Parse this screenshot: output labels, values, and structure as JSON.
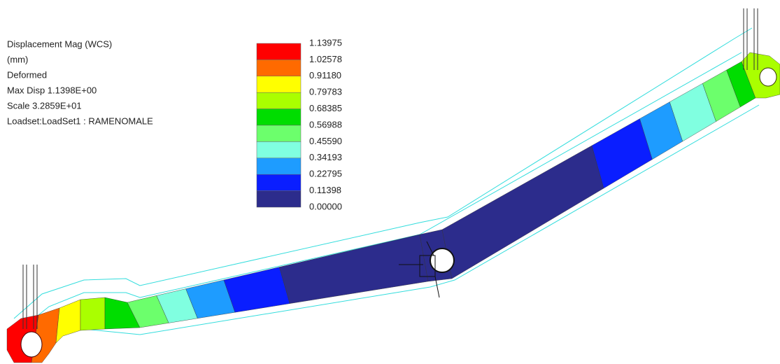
{
  "info": [
    "Displacement Mag (WCS)",
    "(mm)",
    "Deformed",
    "Max Disp  1.1398E+00",
    "Scale  3.2859E+01",
    "Loadset:LoadSet1 :  RAMENOMALE"
  ],
  "legend": {
    "labels": [
      "1.13975",
      "1.02578",
      "0.91180",
      "0.79783",
      "0.68385",
      "0.56988",
      "0.45590",
      "0.34193",
      "0.22795",
      "0.11398",
      "0.00000"
    ],
    "colors": [
      "#ff0000",
      "#ff6a00",
      "#ffff00",
      "#aaff00",
      "#00dd00",
      "#6cff6c",
      "#80ffe0",
      "#1e9cff",
      "#0a1eff",
      "#2c2c8c"
    ]
  }
}
